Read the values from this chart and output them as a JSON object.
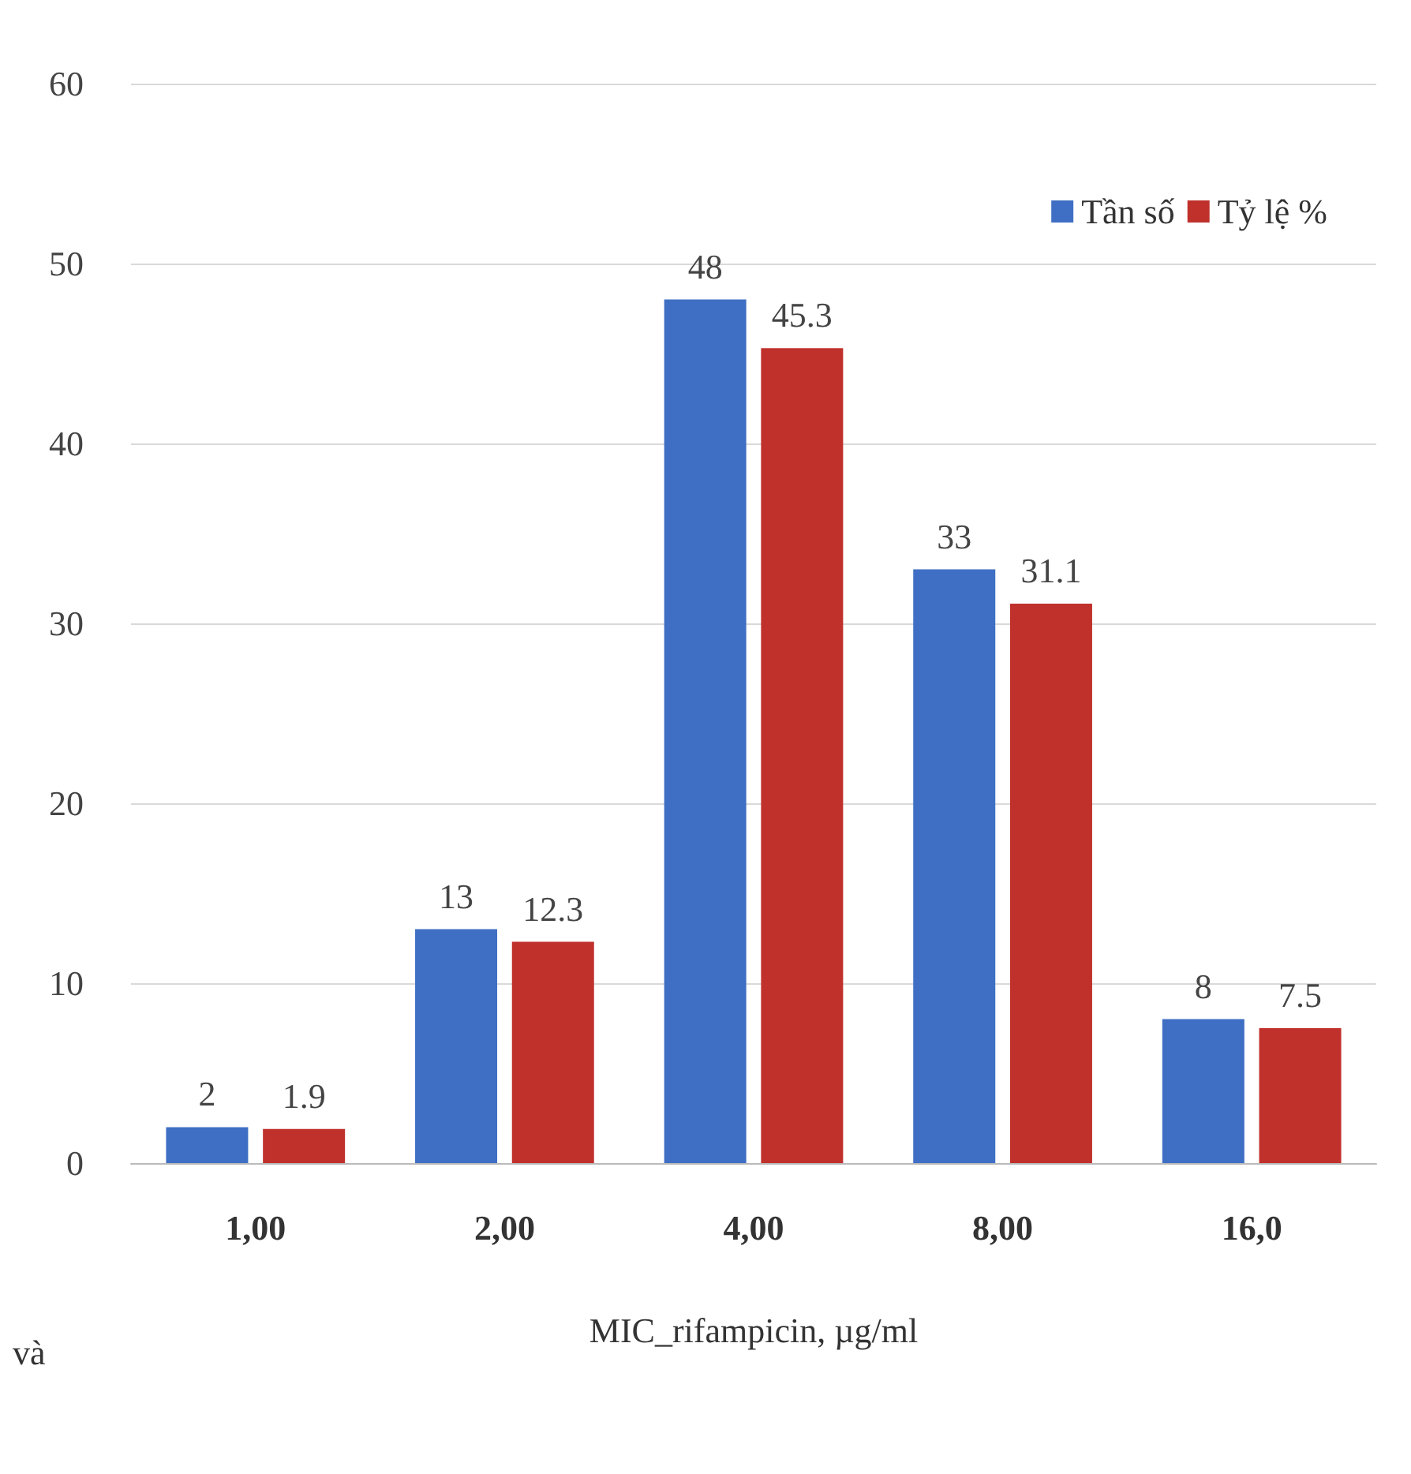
{
  "chart_data": {
    "type": "bar",
    "xlabel": "MIC_rifampicin, µg/ml",
    "categories": [
      "1,00",
      "2,00",
      "4,00",
      "8,00",
      "16,0"
    ],
    "series": [
      {
        "name": "Tần số",
        "color": "#3f6fc4",
        "values": [
          2,
          13,
          48,
          33,
          8
        ]
      },
      {
        "name": "Tỷ lệ %",
        "color": "#c0312c",
        "values": [
          1.9,
          12.3,
          45.3,
          31.1,
          7.5
        ]
      }
    ],
    "ylim": [
      0,
      60
    ],
    "yticks": [
      0,
      10,
      20,
      30,
      40,
      50,
      60
    ],
    "grid": "y",
    "legend": "top right",
    "data_labels": true,
    "annotations": [
      {
        "text": "và"
      }
    ]
  }
}
